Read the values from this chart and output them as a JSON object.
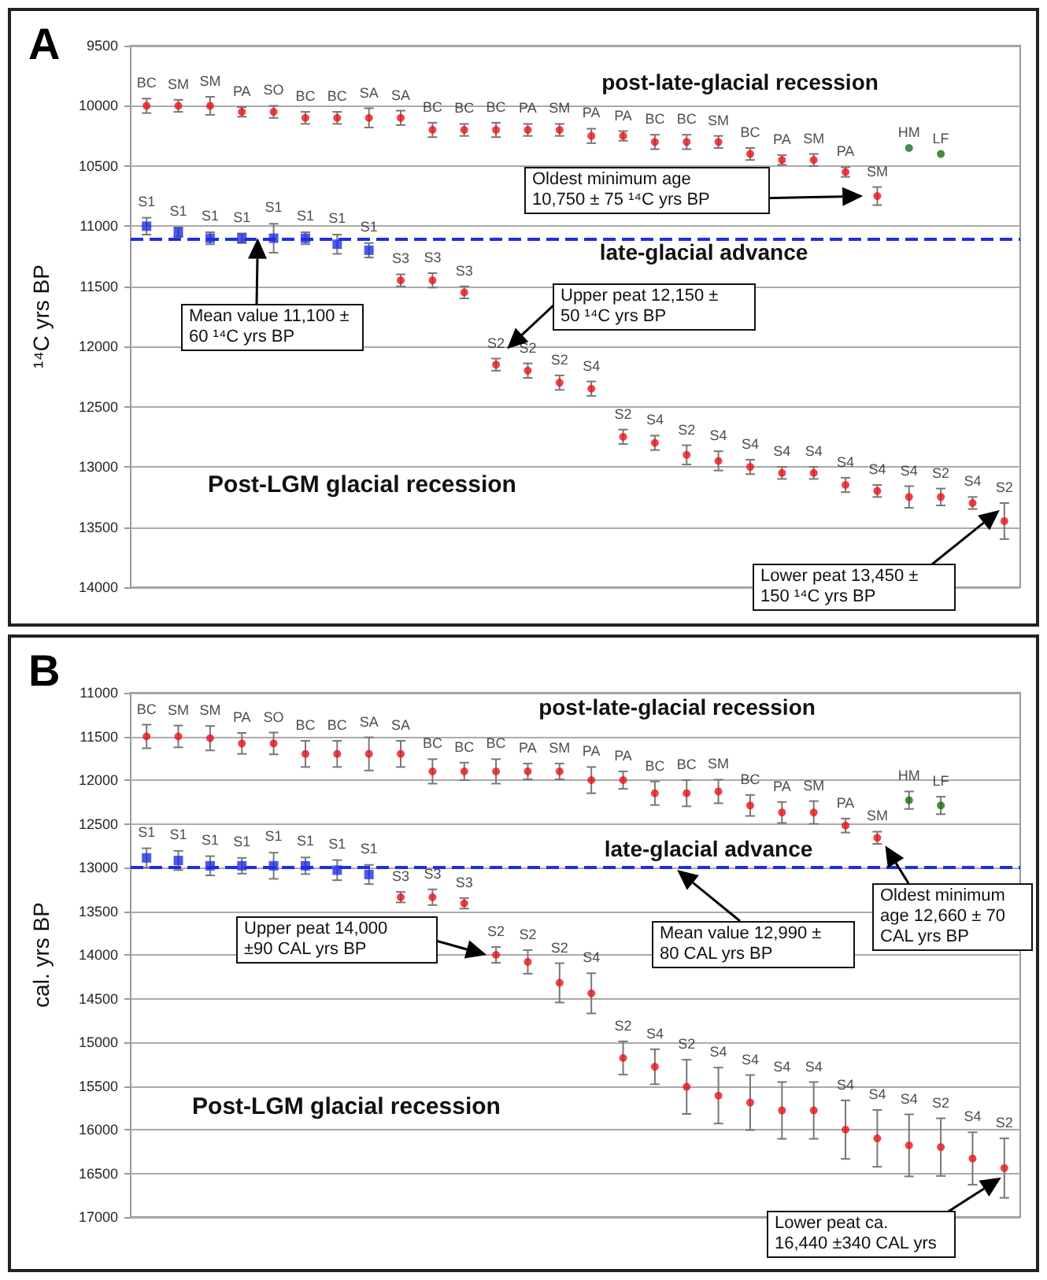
{
  "chart_data": [
    {
      "type": "scatter",
      "title": "A",
      "ylabel": "¹⁴C yrs BP",
      "tick_labels": "y",
      "grid": "y",
      "categories": [
        null,
        null,
        null,
        null,
        null,
        null,
        null,
        null,
        null,
        null,
        null,
        null,
        null,
        null,
        null,
        null,
        null,
        null,
        null,
        null,
        null,
        null,
        null,
        null,
        null,
        null,
        null,
        null
      ],
      "ylim": [
        14000,
        9500
      ],
      "yticks": [
        9500,
        10000,
        10500,
        11000,
        11500,
        12000,
        12500,
        13000,
        13500,
        14000
      ],
      "ref_lines": [
        {
          "axis": "y",
          "value": 11100,
          "color": "#1f2fe0",
          "line_style": "dashed"
        }
      ],
      "series": [
        {
          "color": "#e8141c",
          "marker": "circle",
          "values": [
            10000,
            10000,
            10000,
            10050,
            10050,
            10100,
            10100,
            10100,
            10100,
            10200,
            10200,
            10200,
            10200,
            10200,
            10250,
            10250,
            10300,
            10300,
            10300,
            10400,
            10450,
            10450,
            10550,
            10750,
            null,
            null,
            null,
            null
          ],
          "errors": [
            60,
            50,
            75,
            40,
            50,
            50,
            50,
            80,
            60,
            60,
            50,
            60,
            50,
            50,
            60,
            40,
            60,
            60,
            50,
            50,
            40,
            50,
            40,
            75,
            null,
            null,
            null,
            null
          ],
          "value_labels": [
            "BC",
            "SM",
            "SM",
            "PA",
            "SO",
            "BC",
            "BC",
            "SA",
            "SA",
            "BC",
            "BC",
            "BC",
            "PA",
            "SM",
            "PA",
            "PA",
            "BC",
            "BC",
            "SM",
            "BC",
            "PA",
            "SM",
            "PA",
            "SM",
            null,
            null,
            null,
            null
          ]
        },
        {
          "color": "#1c6b1c",
          "marker": "circle",
          "values": [
            null,
            null,
            null,
            null,
            null,
            null,
            null,
            null,
            null,
            null,
            null,
            null,
            null,
            null,
            null,
            null,
            null,
            null,
            null,
            null,
            null,
            null,
            null,
            null,
            10350,
            10400,
            null,
            null
          ],
          "value_labels": [
            null,
            null,
            null,
            null,
            null,
            null,
            null,
            null,
            null,
            null,
            null,
            null,
            null,
            null,
            null,
            null,
            null,
            null,
            null,
            null,
            null,
            null,
            null,
            null,
            "HM",
            "LF",
            null,
            null
          ]
        },
        {
          "color": "#1f2fe0",
          "marker": "square",
          "values": [
            11000,
            11050,
            11100,
            11100,
            11100,
            11100,
            11150,
            11200,
            null,
            null,
            null,
            null,
            null,
            null,
            null,
            null,
            null,
            null,
            null,
            null,
            null,
            null,
            null,
            null,
            null,
            null,
            null,
            null
          ],
          "errors": [
            70,
            40,
            50,
            40,
            120,
            50,
            80,
            60,
            null,
            null,
            null,
            null,
            null,
            null,
            null,
            null,
            null,
            null,
            null,
            null,
            null,
            null,
            null,
            null,
            null,
            null,
            null,
            null
          ],
          "value_labels": [
            "S1",
            "S1",
            "S1",
            "S1",
            "S1",
            "S1",
            "S1",
            "S1",
            null,
            null,
            null,
            null,
            null,
            null,
            null,
            null,
            null,
            null,
            null,
            null,
            null,
            null,
            null,
            null,
            null,
            null,
            null,
            null
          ]
        },
        {
          "color": "#e8141c",
          "marker": "circle",
          "values": [
            null,
            null,
            null,
            null,
            null,
            null,
            null,
            null,
            11450,
            11450,
            11550,
            12150,
            12200,
            12300,
            12350,
            12750,
            12800,
            12900,
            12950,
            13000,
            13050,
            13050,
            13150,
            13200,
            13250,
            13250,
            13300,
            13450
          ],
          "errors": [
            null,
            null,
            null,
            null,
            null,
            null,
            null,
            null,
            50,
            60,
            50,
            50,
            60,
            60,
            60,
            60,
            60,
            80,
            80,
            60,
            50,
            50,
            60,
            50,
            90,
            70,
            50,
            150
          ],
          "value_labels": [
            null,
            null,
            null,
            null,
            null,
            null,
            null,
            null,
            "S3",
            "S3",
            "S3",
            "S2",
            "S2",
            "S2",
            "S4",
            "S2",
            "S4",
            "S2",
            "S4",
            "S4",
            "S4",
            "S4",
            "S4",
            "S4",
            "S4",
            "S2",
            "S4",
            "S2"
          ]
        }
      ],
      "annotations": [
        "post-late-glacial recession",
        "late-glacial advance",
        "Post-LGM glacial recession",
        "Oldest minimum age\n10,750 ± 75 ¹⁴C yrs BP",
        "Mean value 11,100 ±\n60 ¹⁴C yrs BP",
        "Upper peat 12,150 ±\n50 ¹⁴C yrs BP",
        "Lower peat 13,450 ±\n150 ¹⁴C yrs BP"
      ]
    },
    {
      "type": "scatter",
      "title": "B",
      "ylabel": "cal. yrs BP",
      "tick_labels": "y",
      "grid": "y",
      "categories": [
        null,
        null,
        null,
        null,
        null,
        null,
        null,
        null,
        null,
        null,
        null,
        null,
        null,
        null,
        null,
        null,
        null,
        null,
        null,
        null,
        null,
        null,
        null,
        null,
        null,
        null,
        null,
        null
      ],
      "ylim": [
        17000,
        11000
      ],
      "yticks": [
        11000,
        11500,
        12000,
        12500,
        13000,
        13500,
        14000,
        14500,
        15000,
        15500,
        16000,
        16500,
        17000
      ],
      "ref_lines": [
        {
          "axis": "y",
          "value": 12990,
          "color": "#1f2fe0",
          "line_style": "dashed"
        }
      ],
      "series": [
        {
          "color": "#e8141c",
          "marker": "circle",
          "values": [
            11500,
            11500,
            11520,
            11580,
            11580,
            11700,
            11700,
            11700,
            11700,
            11900,
            11900,
            11900,
            11900,
            11900,
            12000,
            12000,
            12150,
            12150,
            12130,
            12290,
            12370,
            12370,
            12520,
            12660,
            null,
            null,
            null,
            null
          ],
          "errors": [
            135,
            125,
            140,
            120,
            125,
            150,
            150,
            190,
            150,
            140,
            100,
            140,
            90,
            90,
            150,
            100,
            135,
            150,
            135,
            120,
            120,
            130,
            80,
            70,
            null,
            null,
            null,
            null
          ],
          "value_labels": [
            "BC",
            "SM",
            "SM",
            "PA",
            "SO",
            "BC",
            "BC",
            "SA",
            "SA",
            "BC",
            "BC",
            "BC",
            "PA",
            "SM",
            "PA",
            "PA",
            "BC",
            "BC",
            "SM",
            "BC",
            "PA",
            "SM",
            "PA",
            "SM",
            null,
            null,
            null,
            null
          ]
        },
        {
          "color": "#1c6b1c",
          "marker": "circle",
          "values": [
            null,
            null,
            null,
            null,
            null,
            null,
            null,
            null,
            null,
            null,
            null,
            null,
            null,
            null,
            null,
            null,
            null,
            null,
            null,
            null,
            null,
            null,
            null,
            null,
            12230,
            12290,
            null,
            null
          ],
          "errors": [
            null,
            null,
            null,
            null,
            null,
            null,
            null,
            null,
            null,
            null,
            null,
            null,
            null,
            null,
            null,
            null,
            null,
            null,
            null,
            null,
            null,
            null,
            null,
            null,
            100,
            100,
            null,
            null
          ],
          "value_labels": [
            null,
            null,
            null,
            null,
            null,
            null,
            null,
            null,
            null,
            null,
            null,
            null,
            null,
            null,
            null,
            null,
            null,
            null,
            null,
            null,
            null,
            null,
            null,
            null,
            "HM",
            "LF",
            null,
            null
          ]
        },
        {
          "color": "#1f2fe0",
          "marker": "square",
          "values": [
            12890,
            12920,
            12980,
            12980,
            12980,
            12980,
            13030,
            13080,
            null,
            null,
            null,
            null,
            null,
            null,
            null,
            null,
            null,
            null,
            null,
            null,
            null,
            null,
            null,
            null,
            null,
            null,
            null,
            null
          ],
          "errors": [
            110,
            110,
            110,
            90,
            150,
            95,
            115,
            110,
            null,
            null,
            null,
            null,
            null,
            null,
            null,
            null,
            null,
            null,
            null,
            null,
            null,
            null,
            null,
            null,
            null,
            null,
            null,
            null
          ],
          "value_labels": [
            "S1",
            "S1",
            "S1",
            "S1",
            "S1",
            "S1",
            "S1",
            "S1",
            null,
            null,
            null,
            null,
            null,
            null,
            null,
            null,
            null,
            null,
            null,
            null,
            null,
            null,
            null,
            null,
            null,
            null,
            null,
            null
          ]
        },
        {
          "color": "#e8141c",
          "marker": "circle",
          "values": [
            null,
            null,
            null,
            null,
            null,
            null,
            null,
            null,
            13340,
            13340,
            13410,
            14000,
            14080,
            14320,
            14440,
            15180,
            15280,
            15510,
            15610,
            15690,
            15780,
            15780,
            16000,
            16100,
            16180,
            16200,
            16330,
            16440
          ],
          "errors": [
            null,
            null,
            null,
            null,
            null,
            null,
            null,
            null,
            60,
            90,
            60,
            90,
            135,
            225,
            230,
            190,
            200,
            310,
            320,
            315,
            325,
            325,
            335,
            325,
            355,
            330,
            300,
            340
          ],
          "value_labels": [
            null,
            null,
            null,
            null,
            null,
            null,
            null,
            null,
            "S3",
            "S3",
            "S3",
            "S2",
            "S2",
            "S2",
            "S4",
            "S2",
            "S4",
            "S2",
            "S4",
            "S4",
            "S4",
            "S4",
            "S4",
            "S4",
            "S4",
            "S2",
            "S4",
            "S2"
          ]
        }
      ],
      "annotations": [
        "post-late-glacial recession",
        "late-glacial advance",
        "Post-LGM glacial recession",
        "Upper peat 14,000\n±90 CAL yrs BP",
        "Mean value 12,990 ±\n80 CAL yrs BP",
        "Oldest minimum\nage 12,660 ± 70\nCAL yrs BP",
        "Lower peat ca.\n16,440 ±340 CAL yrs"
      ]
    }
  ]
}
